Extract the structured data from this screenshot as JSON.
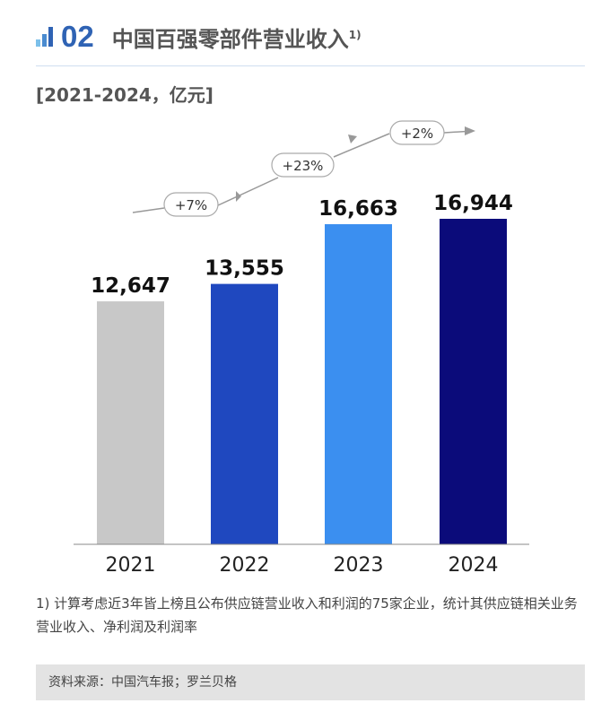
{
  "header": {
    "number": "02",
    "title": "中国百强零部件营业收入",
    "footnote_mark": "1)"
  },
  "unit": "[2021-2024，亿元]",
  "chart_data": {
    "type": "bar",
    "categories": [
      "2021",
      "2022",
      "2023",
      "2024"
    ],
    "values": [
      12647,
      13555,
      16663,
      16944
    ],
    "value_labels": [
      "12,647",
      "13,555",
      "16,663",
      "16,944"
    ],
    "colors": [
      "#c8c8c8",
      "#1f48bf",
      "#3b8ff0",
      "#0b0b7a"
    ],
    "growth_labels": [
      "+7%",
      "+23%",
      "+2%"
    ],
    "ylim": [
      0,
      17500
    ],
    "grid": false
  },
  "footnote": "1) 计算考虑近3年皆上榜且公布供应链营业收入和利润的75家企业，统计其供应链相关业务营业收入、净利润及利润率",
  "source": "资料来源：中国汽车报；罗兰贝格"
}
